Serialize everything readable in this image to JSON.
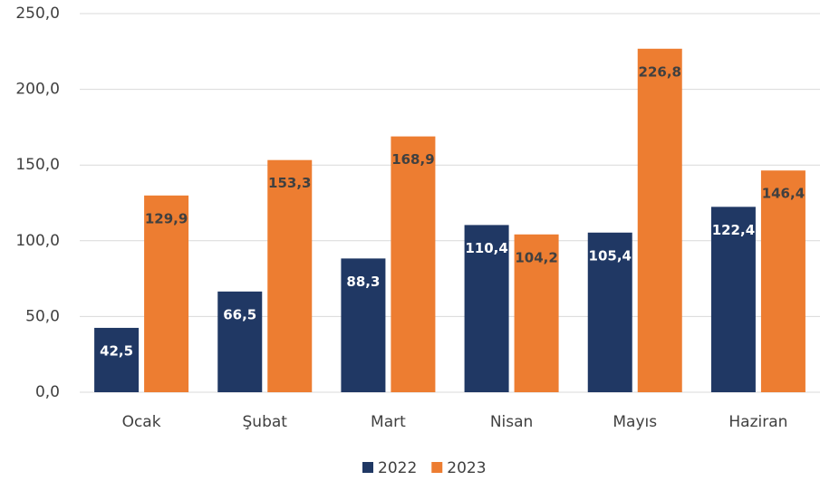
{
  "chart_data": {
    "type": "bar",
    "categories": [
      "Ocak",
      "Şubat",
      "Mart",
      "Nisan",
      "Mayıs",
      "Haziran"
    ],
    "series": [
      {
        "name": "2022",
        "color": "#203864",
        "values": [
          42.5,
          66.5,
          88.3,
          110.4,
          105.4,
          122.4
        ],
        "value_labels": [
          "42,5",
          "66,5",
          "88,3",
          "110,4",
          "105,4",
          "122,4"
        ]
      },
      {
        "name": "2023",
        "color": "#ed7d31",
        "values": [
          129.9,
          153.3,
          168.9,
          104.2,
          226.8,
          146.4
        ],
        "value_labels": [
          "129,9",
          "153,3",
          "168,9",
          "104,2",
          "226,8",
          "146,4"
        ]
      }
    ],
    "ylim": [
      0,
      250
    ],
    "yticks": [
      {
        "value": 0,
        "label": "0,0"
      },
      {
        "value": 50,
        "label": "50,0"
      },
      {
        "value": 100,
        "label": "100,0"
      },
      {
        "value": 150,
        "label": "150,0"
      },
      {
        "value": 200,
        "label": "200,0"
      },
      {
        "value": 250,
        "label": "250,0"
      }
    ],
    "grid": true,
    "legend": "bottom"
  }
}
